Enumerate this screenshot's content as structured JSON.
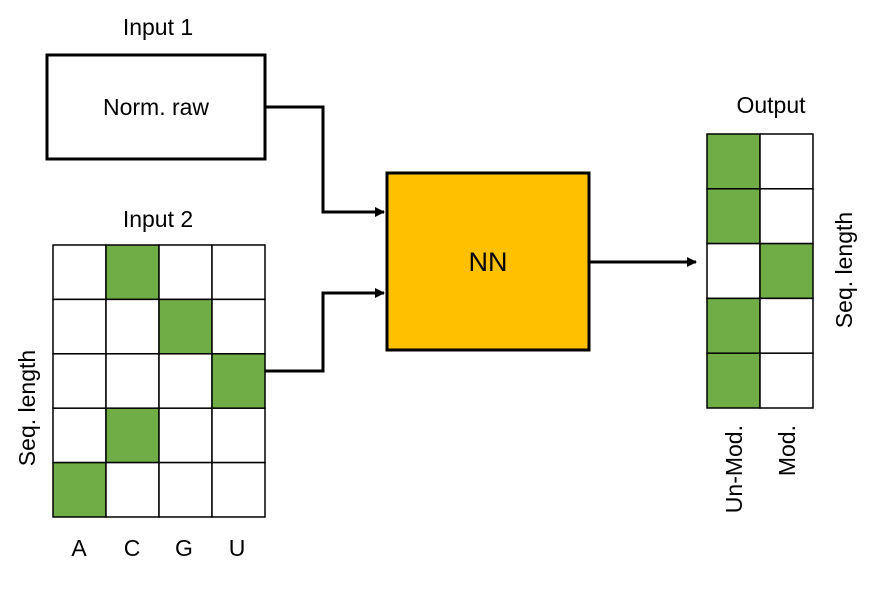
{
  "colors": {
    "active": "#70AD47",
    "inactive": "#FFFFFF",
    "nn_fill": "#FFC000",
    "stroke": "#000000"
  },
  "input1": {
    "title": "Input 1",
    "box_label": "Norm. raw"
  },
  "input2": {
    "title": "Input 2",
    "row_axis_label": "Seq. length",
    "columns": [
      "A",
      "C",
      "G",
      "U"
    ],
    "grid": [
      [
        0,
        1,
        0,
        0
      ],
      [
        0,
        0,
        1,
        0
      ],
      [
        0,
        0,
        0,
        1
      ],
      [
        0,
        1,
        0,
        0
      ],
      [
        1,
        0,
        0,
        0
      ]
    ]
  },
  "nn": {
    "label": "NN"
  },
  "output": {
    "title": "Output",
    "row_axis_label": "Seq. length",
    "columns": [
      "Un-Mod.",
      "Mod."
    ],
    "grid": [
      [
        1,
        0
      ],
      [
        1,
        0
      ],
      [
        0,
        1
      ],
      [
        1,
        0
      ],
      [
        1,
        0
      ]
    ]
  }
}
